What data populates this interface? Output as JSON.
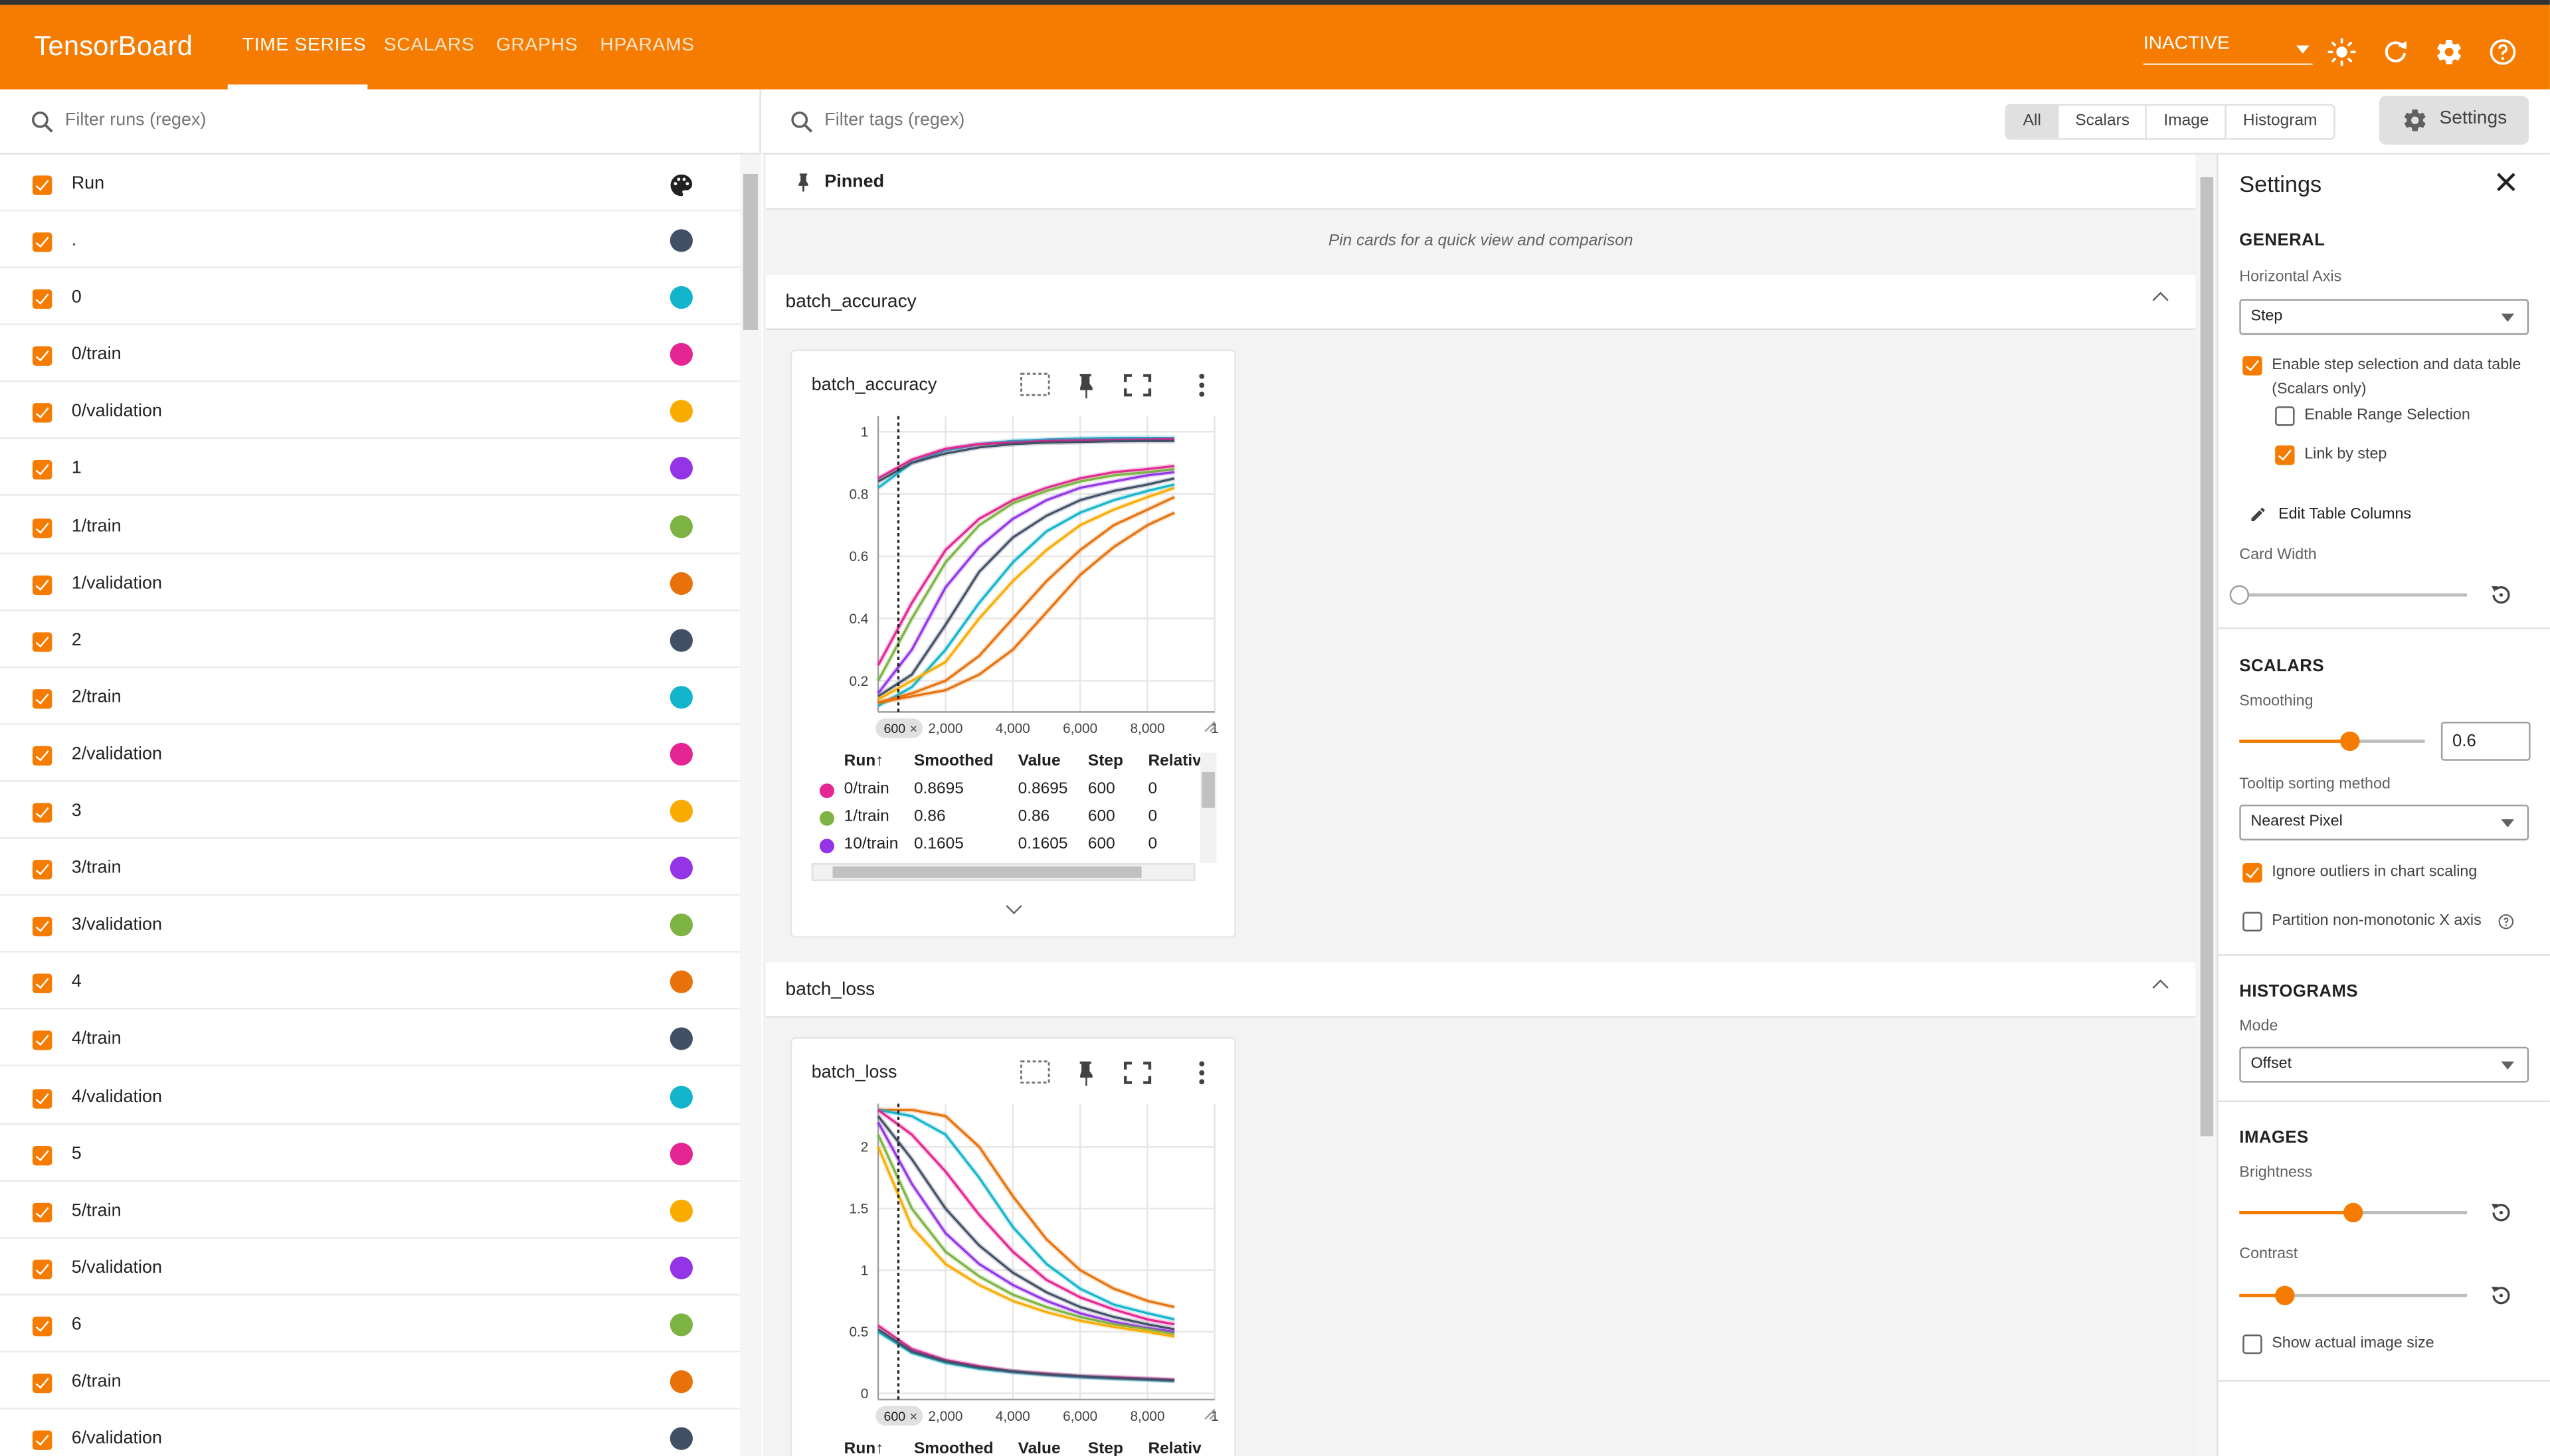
{
  "app": {
    "brand": "TensorBoard",
    "colors": {
      "header": "#f57c00",
      "accent": "#f57c00"
    }
  },
  "header": {
    "tabs": [
      {
        "label": "TIME SERIES",
        "active": true
      },
      {
        "label": "SCALARS",
        "active": false
      },
      {
        "label": "GRAPHS",
        "active": false
      },
      {
        "label": "HPARAMS",
        "active": false
      }
    ],
    "reload_status": "INACTIVE",
    "icons": [
      "theme-toggle-icon",
      "refresh-icon",
      "gear-icon",
      "help-icon"
    ]
  },
  "runs": {
    "filter_placeholder": "Filter runs (regex)",
    "header_label": "Run",
    "items": [
      {
        "label": ".",
        "color": "#425066"
      },
      {
        "label": "0",
        "color": "#12b5cb"
      },
      {
        "label": "0/train",
        "color": "#e52592"
      },
      {
        "label": "0/validation",
        "color": "#f9ab00"
      },
      {
        "label": "1",
        "color": "#9334e6"
      },
      {
        "label": "1/train",
        "color": "#7cb342"
      },
      {
        "label": "1/validation",
        "color": "#e8710a"
      },
      {
        "label": "2",
        "color": "#425066"
      },
      {
        "label": "2/train",
        "color": "#12b5cb"
      },
      {
        "label": "2/validation",
        "color": "#e52592"
      },
      {
        "label": "3",
        "color": "#f9ab00"
      },
      {
        "label": "3/train",
        "color": "#9334e6"
      },
      {
        "label": "3/validation",
        "color": "#7cb342"
      },
      {
        "label": "4",
        "color": "#e8710a"
      },
      {
        "label": "4/train",
        "color": "#425066"
      },
      {
        "label": "4/validation",
        "color": "#12b5cb"
      },
      {
        "label": "5",
        "color": "#e52592"
      },
      {
        "label": "5/train",
        "color": "#f9ab00"
      },
      {
        "label": "5/validation",
        "color": "#9334e6"
      },
      {
        "label": "6",
        "color": "#7cb342"
      },
      {
        "label": "6/train",
        "color": "#e8710a"
      },
      {
        "label": "6/validation",
        "color": "#425066"
      }
    ]
  },
  "tags": {
    "filter_placeholder": "Filter tags (regex)",
    "type_filters": [
      {
        "label": "All",
        "selected": true
      },
      {
        "label": "Scalars",
        "selected": false
      },
      {
        "label": "Image",
        "selected": false
      },
      {
        "label": "Histogram",
        "selected": false
      }
    ],
    "settings_button": "Settings"
  },
  "pinned": {
    "title": "Pinned",
    "empty_message": "Pin cards for a quick view and comparison"
  },
  "sections": [
    {
      "title": "batch_accuracy",
      "card": {
        "title": "batch_accuracy",
        "step_marker": "600",
        "table": {
          "columns": [
            "Run",
            "Smoothed",
            "Value",
            "Step",
            "Relativ"
          ],
          "rows": [
            {
              "run": "0/train",
              "color": "#e52592",
              "smoothed": "0.8695",
              "value": "0.8695",
              "step": "600",
              "relative": "0"
            },
            {
              "run": "1/train",
              "color": "#7cb342",
              "smoothed": "0.86",
              "value": "0.86",
              "step": "600",
              "relative": "0"
            },
            {
              "run": "10/train",
              "color": "#9334e6",
              "smoothed": "0.1605",
              "value": "0.1605",
              "step": "600",
              "relative": "0"
            }
          ]
        }
      }
    },
    {
      "title": "batch_loss",
      "card": {
        "title": "batch_loss",
        "step_marker": "600",
        "table": {
          "columns": [
            "Run",
            "Smoothed",
            "Value",
            "Step",
            "Relativ"
          ],
          "rows": []
        }
      }
    }
  ],
  "chart_data": [
    {
      "type": "line",
      "title": "batch_accuracy",
      "x_ticks": [
        "2,000",
        "4,000",
        "6,000",
        "8,000",
        "1"
      ],
      "y_ticks": [
        "0.2",
        "0.4",
        "0.6",
        "0.8",
        "1"
      ],
      "xlim": [
        0,
        10000
      ],
      "ylim": [
        0.1,
        1.05
      ],
      "step_marker": 600,
      "series": [
        {
          "x": [
            0,
            1000,
            2000,
            3000,
            4000,
            5000,
            6000,
            7000,
            8000,
            8800
          ],
          "values": [
            0.82,
            0.9,
            0.94,
            0.96,
            0.97,
            0.975,
            0.978,
            0.98,
            0.98,
            0.98
          ],
          "color": "#12b5cb"
        },
        {
          "x": [
            0,
            1000,
            2000,
            3000,
            4000,
            5000,
            6000,
            7000,
            8000,
            8800
          ],
          "values": [
            0.85,
            0.91,
            0.945,
            0.96,
            0.965,
            0.97,
            0.972,
            0.974,
            0.975,
            0.976
          ],
          "color": "#e52592"
        },
        {
          "x": [
            0,
            1000,
            2000,
            3000,
            4000,
            5000,
            6000,
            7000,
            8000,
            8800
          ],
          "values": [
            0.84,
            0.9,
            0.93,
            0.95,
            0.96,
            0.965,
            0.967,
            0.969,
            0.97,
            0.97
          ],
          "color": "#425066"
        },
        {
          "x": [
            0,
            1000,
            2000,
            3000,
            4000,
            5000,
            6000,
            7000,
            8000,
            8800
          ],
          "values": [
            0.25,
            0.45,
            0.62,
            0.72,
            0.78,
            0.82,
            0.85,
            0.87,
            0.88,
            0.89
          ],
          "color": "#e52592"
        },
        {
          "x": [
            0,
            1000,
            2000,
            3000,
            4000,
            5000,
            6000,
            7000,
            8000,
            8800
          ],
          "values": [
            0.2,
            0.4,
            0.58,
            0.7,
            0.77,
            0.81,
            0.84,
            0.86,
            0.87,
            0.88
          ],
          "color": "#7cb342"
        },
        {
          "x": [
            0,
            1000,
            2000,
            3000,
            4000,
            5000,
            6000,
            7000,
            8000,
            8800
          ],
          "values": [
            0.16,
            0.3,
            0.5,
            0.63,
            0.72,
            0.78,
            0.82,
            0.84,
            0.86,
            0.87
          ],
          "color": "#9334e6"
        },
        {
          "x": [
            0,
            1000,
            2000,
            3000,
            4000,
            5000,
            6000,
            7000,
            8000,
            8800
          ],
          "values": [
            0.15,
            0.22,
            0.38,
            0.55,
            0.66,
            0.73,
            0.78,
            0.81,
            0.83,
            0.85
          ],
          "color": "#425066"
        },
        {
          "x": [
            0,
            1000,
            2000,
            3000,
            4000,
            5000,
            6000,
            7000,
            8000,
            8800
          ],
          "values": [
            0.12,
            0.18,
            0.3,
            0.45,
            0.58,
            0.68,
            0.74,
            0.78,
            0.81,
            0.83
          ],
          "color": "#12b5cb"
        },
        {
          "x": [
            0,
            1000,
            2000,
            3000,
            4000,
            5000,
            6000,
            7000,
            8000,
            8800
          ],
          "values": [
            0.14,
            0.2,
            0.26,
            0.4,
            0.52,
            0.62,
            0.7,
            0.75,
            0.79,
            0.82
          ],
          "color": "#f9ab00"
        },
        {
          "x": [
            0,
            1000,
            2000,
            3000,
            4000,
            5000,
            6000,
            7000,
            8000,
            8800
          ],
          "values": [
            0.13,
            0.16,
            0.2,
            0.28,
            0.4,
            0.52,
            0.62,
            0.7,
            0.75,
            0.79
          ],
          "color": "#e8710a"
        },
        {
          "x": [
            0,
            1000,
            2000,
            3000,
            4000,
            5000,
            6000,
            7000,
            8000,
            8800
          ],
          "values": [
            0.13,
            0.15,
            0.17,
            0.22,
            0.3,
            0.42,
            0.54,
            0.63,
            0.7,
            0.74
          ],
          "color": "#e8710a"
        }
      ]
    },
    {
      "type": "line",
      "title": "batch_loss",
      "x_ticks": [
        "2,000",
        "4,000",
        "6,000",
        "8,000",
        "1"
      ],
      "y_ticks": [
        "0",
        "0.5",
        "1",
        "1.5",
        "2"
      ],
      "xlim": [
        0,
        10000
      ],
      "ylim": [
        -0.05,
        2.35
      ],
      "step_marker": 600,
      "series": [
        {
          "x": [
            0,
            1000,
            2000,
            3000,
            4000,
            5000,
            6000,
            7000,
            8000,
            8800
          ],
          "values": [
            2.3,
            2.3,
            2.25,
            2.0,
            1.6,
            1.25,
            1.0,
            0.85,
            0.75,
            0.7
          ],
          "color": "#e8710a"
        },
        {
          "x": [
            0,
            1000,
            2000,
            3000,
            4000,
            5000,
            6000,
            7000,
            8000,
            8800
          ],
          "values": [
            2.3,
            2.25,
            2.1,
            1.75,
            1.35,
            1.05,
            0.85,
            0.72,
            0.65,
            0.6
          ],
          "color": "#12b5cb"
        },
        {
          "x": [
            0,
            1000,
            2000,
            3000,
            4000,
            5000,
            6000,
            7000,
            8000,
            8800
          ],
          "values": [
            2.3,
            2.1,
            1.8,
            1.45,
            1.15,
            0.92,
            0.78,
            0.68,
            0.6,
            0.56
          ],
          "color": "#e52592"
        },
        {
          "x": [
            0,
            1000,
            2000,
            3000,
            4000,
            5000,
            6000,
            7000,
            8000,
            8800
          ],
          "values": [
            2.25,
            1.9,
            1.5,
            1.2,
            0.98,
            0.82,
            0.7,
            0.62,
            0.56,
            0.52
          ],
          "color": "#425066"
        },
        {
          "x": [
            0,
            1000,
            2000,
            3000,
            4000,
            5000,
            6000,
            7000,
            8000,
            8800
          ],
          "values": [
            2.2,
            1.7,
            1.3,
            1.05,
            0.88,
            0.75,
            0.65,
            0.58,
            0.53,
            0.5
          ],
          "color": "#9334e6"
        },
        {
          "x": [
            0,
            1000,
            2000,
            3000,
            4000,
            5000,
            6000,
            7000,
            8000,
            8800
          ],
          "values": [
            2.1,
            1.5,
            1.15,
            0.95,
            0.8,
            0.7,
            0.62,
            0.56,
            0.52,
            0.48
          ],
          "color": "#7cb342"
        },
        {
          "x": [
            0,
            1000,
            2000,
            3000,
            4000,
            5000,
            6000,
            7000,
            8000,
            8800
          ],
          "values": [
            2.0,
            1.35,
            1.05,
            0.88,
            0.75,
            0.66,
            0.59,
            0.54,
            0.5,
            0.46
          ],
          "color": "#f9ab00"
        },
        {
          "x": [
            0,
            1000,
            2000,
            3000,
            4000,
            5000,
            6000,
            7000,
            8000,
            8800
          ],
          "values": [
            0.5,
            0.33,
            0.25,
            0.2,
            0.17,
            0.15,
            0.13,
            0.12,
            0.11,
            0.1
          ],
          "color": "#12b5cb"
        },
        {
          "x": [
            0,
            1000,
            2000,
            3000,
            4000,
            5000,
            6000,
            7000,
            8000,
            8800
          ],
          "values": [
            0.55,
            0.36,
            0.27,
            0.22,
            0.18,
            0.16,
            0.14,
            0.13,
            0.12,
            0.11
          ],
          "color": "#e52592"
        },
        {
          "x": [
            0,
            1000,
            2000,
            3000,
            4000,
            5000,
            6000,
            7000,
            8000,
            8800
          ],
          "values": [
            0.52,
            0.34,
            0.26,
            0.21,
            0.18,
            0.155,
            0.14,
            0.125,
            0.115,
            0.105
          ],
          "color": "#425066"
        }
      ]
    }
  ],
  "settings": {
    "title": "Settings",
    "general": {
      "heading": "GENERAL",
      "horizontal_axis_label": "Horizontal Axis",
      "horizontal_axis_value": "Step",
      "step_selection_label": "Enable step selection and data table",
      "step_selection_sub": "(Scalars only)",
      "step_selection_checked": true,
      "range_selection_label": "Enable Range Selection",
      "range_selection_checked": false,
      "link_by_step_label": "Link by step",
      "link_by_step_checked": true,
      "edit_columns_label": "Edit Table Columns",
      "card_width_label": "Card Width",
      "card_width_level": 0
    },
    "scalars": {
      "heading": "SCALARS",
      "smoothing_label": "Smoothing",
      "smoothing_value": "0.6",
      "smoothing_level": 0.6,
      "tooltip_sort_label": "Tooltip sorting method",
      "tooltip_sort_value": "Nearest Pixel",
      "ignore_outliers_label": "Ignore outliers in chart scaling",
      "ignore_outliers_checked": true,
      "partition_label": "Partition non-monotonic X axis",
      "partition_checked": false
    },
    "histograms": {
      "heading": "HISTOGRAMS",
      "mode_label": "Mode",
      "mode_value": "Offset"
    },
    "images": {
      "heading": "IMAGES",
      "brightness_label": "Brightness",
      "brightness_level": 0.5,
      "contrast_label": "Contrast",
      "contrast_level": 0.2,
      "actual_size_label": "Show actual image size",
      "actual_size_checked": false
    }
  }
}
